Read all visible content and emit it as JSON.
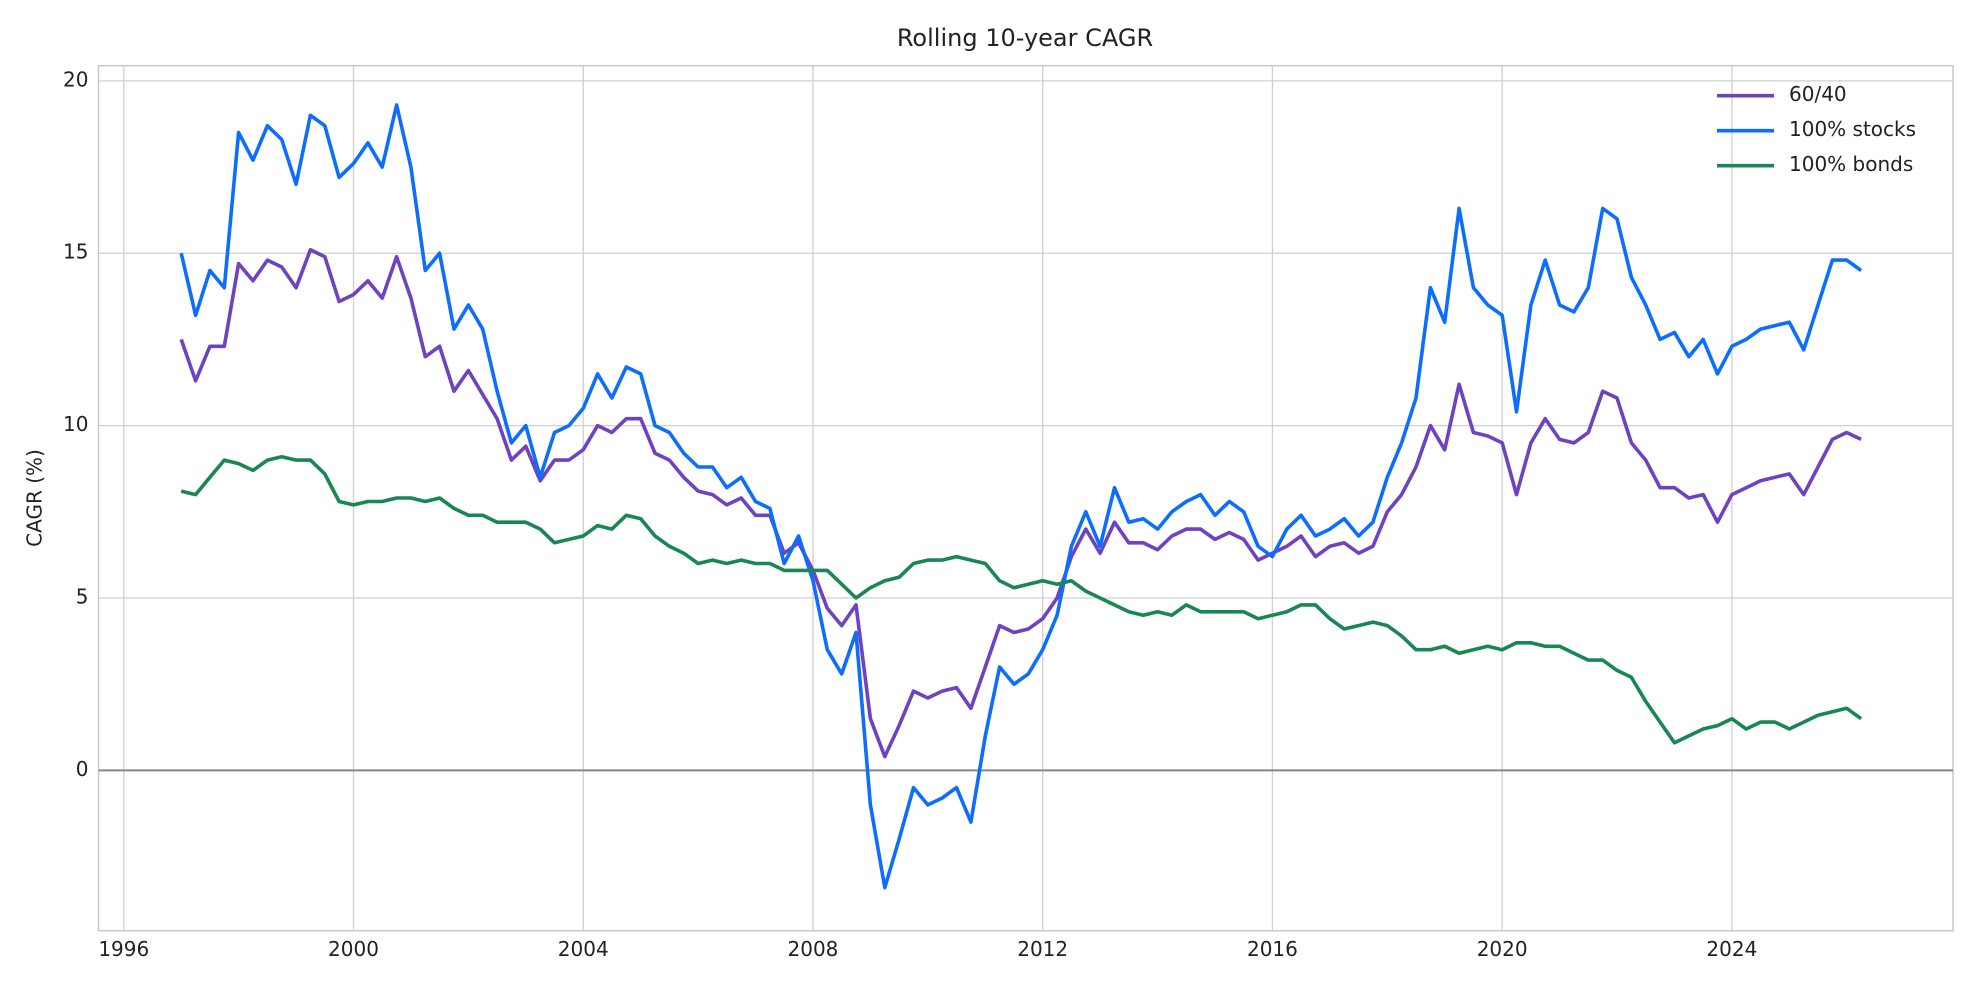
{
  "chart_data": {
    "type": "line",
    "title": "Rolling 10-year CAGR",
    "y_label": "CAGR (%)",
    "x": [
      1997.0,
      1997.25,
      1997.5,
      1997.75,
      1998.0,
      1998.25,
      1998.5,
      1998.75,
      1999.0,
      1999.25,
      1999.5,
      1999.75,
      2000.0,
      2000.25,
      2000.5,
      2000.75,
      2001.0,
      2001.25,
      2001.5,
      2001.75,
      2002.0,
      2002.25,
      2002.5,
      2002.75,
      2003.0,
      2003.25,
      2003.5,
      2003.75,
      2004.0,
      2004.25,
      2004.5,
      2004.75,
      2005.0,
      2005.25,
      2005.5,
      2005.75,
      2006.0,
      2006.25,
      2006.5,
      2006.75,
      2007.0,
      2007.25,
      2007.5,
      2007.75,
      2008.0,
      2008.25,
      2008.5,
      2008.75,
      2009.0,
      2009.25,
      2009.5,
      2009.75,
      2010.0,
      2010.25,
      2010.5,
      2010.75,
      2011.0,
      2011.25,
      2011.5,
      2011.75,
      2012.0,
      2012.25,
      2012.5,
      2012.75,
      2013.0,
      2013.25,
      2013.5,
      2013.75,
      2014.0,
      2014.25,
      2014.5,
      2014.75,
      2015.0,
      2015.25,
      2015.5,
      2015.75,
      2016.0,
      2016.25,
      2016.5,
      2016.75,
      2017.0,
      2017.25,
      2017.5,
      2017.75,
      2018.0,
      2018.25,
      2018.5,
      2018.75,
      2019.0,
      2019.25,
      2019.5,
      2019.75,
      2020.0,
      2020.25,
      2020.5,
      2020.75,
      2021.0,
      2021.25,
      2021.5,
      2021.75,
      2022.0,
      2022.25,
      2022.5,
      2022.75,
      2023.0,
      2023.25,
      2023.5,
      2023.75,
      2024.0,
      2024.25,
      2024.5,
      2024.75,
      2025.0,
      2025.25,
      2025.5,
      2025.75,
      2026.0,
      2026.25
    ],
    "series": [
      {
        "name": "60/40",
        "color": "#6f42c1",
        "values": [
          12.5,
          11.3,
          12.3,
          12.3,
          14.7,
          14.2,
          14.8,
          14.6,
          14.0,
          15.1,
          14.9,
          13.6,
          13.8,
          14.2,
          13.7,
          14.9,
          13.7,
          12.0,
          12.3,
          11.0,
          11.6,
          10.9,
          10.2,
          9.0,
          9.4,
          8.4,
          9.0,
          9.0,
          9.3,
          10.0,
          9.8,
          10.2,
          10.2,
          9.2,
          9.0,
          8.5,
          8.1,
          8.0,
          7.7,
          7.9,
          7.4,
          7.4,
          6.3,
          6.6,
          5.8,
          4.7,
          4.2,
          4.8,
          1.5,
          0.4,
          1.3,
          2.3,
          2.1,
          2.3,
          2.4,
          1.8,
          3.0,
          4.2,
          4.0,
          4.1,
          4.4,
          5.0,
          6.2,
          7.0,
          6.3,
          7.2,
          6.6,
          6.6,
          6.4,
          6.8,
          7.0,
          7.0,
          6.7,
          6.9,
          6.7,
          6.1,
          6.3,
          6.5,
          6.8,
          6.2,
          6.5,
          6.6,
          6.3,
          6.5,
          7.5,
          8.0,
          8.8,
          10.0,
          9.3,
          11.2,
          9.8,
          9.7,
          9.5,
          8.0,
          9.5,
          10.2,
          9.6,
          9.5,
          9.8,
          11.0,
          10.8,
          9.5,
          9.0,
          8.2,
          8.2,
          7.9,
          8.0,
          7.2,
          8.0,
          8.2,
          8.4,
          8.5,
          8.6,
          8.0,
          8.8,
          9.6,
          9.8,
          9.6
        ]
      },
      {
        "name": "100% stocks",
        "color": "#0d6efd",
        "values": [
          15.0,
          13.2,
          14.5,
          14.0,
          18.5,
          17.7,
          18.7,
          18.3,
          17.0,
          19.0,
          18.7,
          17.2,
          17.6,
          18.2,
          17.5,
          19.3,
          17.5,
          14.5,
          15.0,
          12.8,
          13.5,
          12.8,
          11.0,
          9.5,
          10.0,
          8.5,
          9.8,
          10.0,
          10.5,
          11.5,
          10.8,
          11.7,
          11.5,
          10.0,
          9.8,
          9.2,
          8.8,
          8.8,
          8.2,
          8.5,
          7.8,
          7.6,
          6.0,
          6.8,
          5.5,
          3.5,
          2.8,
          4.0,
          -1.0,
          -3.4,
          -2.0,
          -0.5,
          -1.0,
          -0.8,
          -0.5,
          -1.5,
          1.0,
          3.0,
          2.5,
          2.8,
          3.5,
          4.5,
          6.5,
          7.5,
          6.5,
          8.2,
          7.2,
          7.3,
          7.0,
          7.5,
          7.8,
          8.0,
          7.4,
          7.8,
          7.5,
          6.5,
          6.2,
          7.0,
          7.4,
          6.8,
          7.0,
          7.3,
          6.8,
          7.2,
          8.5,
          9.5,
          10.8,
          14.0,
          13.0,
          16.3,
          14.0,
          13.5,
          13.2,
          10.4,
          13.5,
          14.8,
          13.5,
          13.3,
          14.0,
          16.3,
          16.0,
          14.3,
          13.5,
          12.5,
          12.7,
          12.0,
          12.5,
          11.5,
          12.3,
          12.5,
          12.8,
          12.9,
          13.0,
          12.2,
          13.5,
          14.8,
          14.8,
          14.5
        ]
      },
      {
        "name": "100% bonds",
        "color": "#198754",
        "values": [
          8.1,
          8.0,
          8.5,
          9.0,
          8.9,
          8.7,
          9.0,
          9.1,
          9.0,
          9.0,
          8.6,
          7.8,
          7.7,
          7.8,
          7.8,
          7.9,
          7.9,
          7.8,
          7.9,
          7.6,
          7.4,
          7.4,
          7.2,
          7.2,
          7.2,
          7.0,
          6.6,
          6.7,
          6.8,
          7.1,
          7.0,
          7.4,
          7.3,
          6.8,
          6.5,
          6.3,
          6.0,
          6.1,
          6.0,
          6.1,
          6.0,
          6.0,
          5.8,
          5.8,
          5.8,
          5.8,
          5.4,
          5.0,
          5.3,
          5.5,
          5.6,
          6.0,
          6.1,
          6.1,
          6.2,
          6.1,
          6.0,
          5.5,
          5.3,
          5.4,
          5.5,
          5.4,
          5.5,
          5.2,
          5.0,
          4.8,
          4.6,
          4.5,
          4.6,
          4.5,
          4.8,
          4.6,
          4.6,
          4.6,
          4.6,
          4.4,
          4.5,
          4.6,
          4.8,
          4.8,
          4.4,
          4.1,
          4.2,
          4.3,
          4.2,
          3.9,
          3.5,
          3.5,
          3.6,
          3.4,
          3.5,
          3.6,
          3.5,
          3.7,
          3.7,
          3.6,
          3.6,
          3.4,
          3.2,
          3.2,
          2.9,
          2.7,
          2.0,
          1.4,
          0.8,
          1.0,
          1.2,
          1.3,
          1.5,
          1.2,
          1.4,
          1.4,
          1.2,
          1.4,
          1.6,
          1.7,
          1.8,
          1.5
        ]
      }
    ],
    "xlim": [
      1995.56,
      2027.85
    ],
    "xticks": [
      1996,
      2000,
      2004,
      2008,
      2012,
      2016,
      2020,
      2024
    ],
    "ylim": [
      -4.65,
      20.44
    ],
    "yticks": [
      0,
      5,
      10,
      15,
      20
    ],
    "hline": 0,
    "grid": true,
    "legend": "upper right"
  }
}
